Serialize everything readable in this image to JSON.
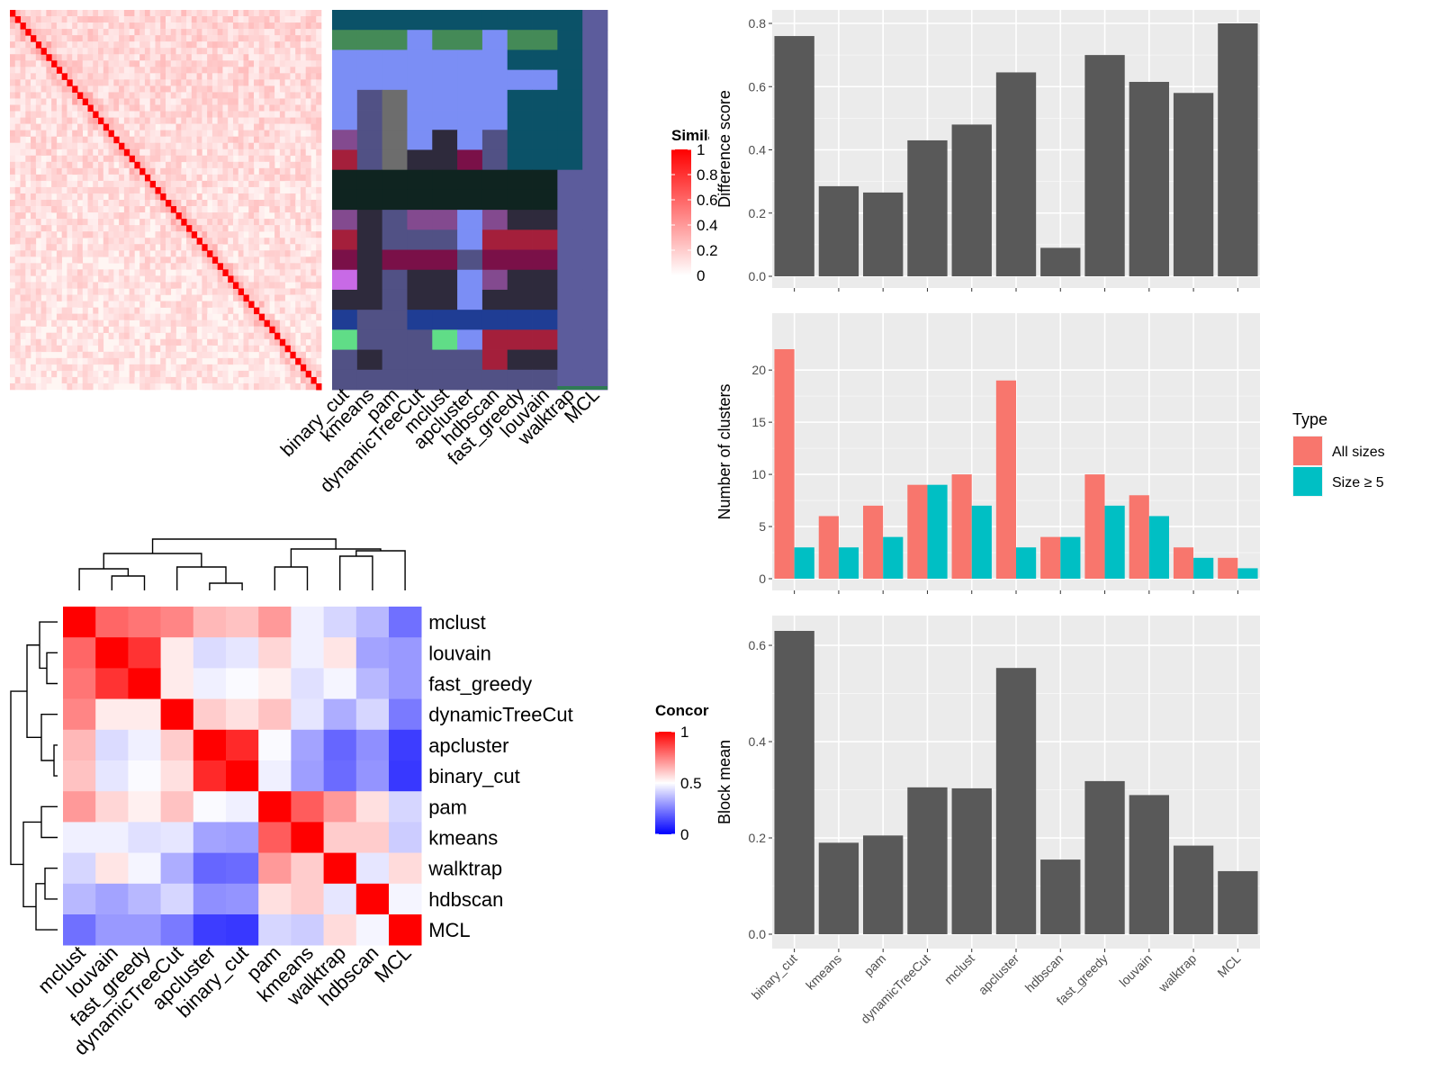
{
  "methods": [
    "binary_cut",
    "kmeans",
    "pam",
    "dynamicTreeCut",
    "mclust",
    "apcluster",
    "hdbscan",
    "fast_greedy",
    "louvain",
    "walktrap",
    "MCL"
  ],
  "similarity_legend": {
    "title": "Similarity",
    "ticks": [
      "1",
      "0.8",
      "0.6",
      "0.4",
      "0.2",
      "0"
    ]
  },
  "concordance_legend": {
    "title": "Concordance",
    "ticks": [
      "1",
      "0.5",
      "0"
    ]
  },
  "concordance_heatmap": {
    "order": [
      "mclust",
      "louvain",
      "fast_greedy",
      "dynamicTreeCut",
      "apcluster",
      "binary_cut",
      "pam",
      "kmeans",
      "walktrap",
      "hdbscan",
      "MCL"
    ],
    "matrix": [
      [
        1.0,
        0.8,
        0.77,
        0.74,
        0.64,
        0.62,
        0.7,
        0.47,
        0.42,
        0.36,
        0.22
      ],
      [
        0.8,
        1.0,
        0.9,
        0.54,
        0.43,
        0.45,
        0.58,
        0.47,
        0.55,
        0.32,
        0.3
      ],
      [
        0.77,
        0.9,
        1.0,
        0.54,
        0.47,
        0.49,
        0.53,
        0.44,
        0.48,
        0.36,
        0.3
      ],
      [
        0.74,
        0.54,
        0.54,
        1.0,
        0.6,
        0.56,
        0.62,
        0.45,
        0.34,
        0.42,
        0.24
      ],
      [
        0.64,
        0.43,
        0.47,
        0.6,
        1.0,
        0.92,
        0.49,
        0.32,
        0.2,
        0.28,
        0.12
      ],
      [
        0.62,
        0.45,
        0.49,
        0.56,
        0.92,
        1.0,
        0.47,
        0.31,
        0.21,
        0.29,
        0.11
      ],
      [
        0.7,
        0.58,
        0.53,
        0.62,
        0.49,
        0.47,
        1.0,
        0.82,
        0.7,
        0.56,
        0.42
      ],
      [
        0.47,
        0.47,
        0.44,
        0.45,
        0.32,
        0.31,
        0.82,
        1.0,
        0.6,
        0.6,
        0.4
      ],
      [
        0.42,
        0.55,
        0.48,
        0.34,
        0.2,
        0.21,
        0.7,
        0.6,
        1.0,
        0.45,
        0.57
      ],
      [
        0.36,
        0.32,
        0.36,
        0.42,
        0.28,
        0.29,
        0.56,
        0.6,
        0.45,
        1.0,
        0.48
      ],
      [
        0.22,
        0.3,
        0.3,
        0.24,
        0.12,
        0.11,
        0.42,
        0.4,
        0.57,
        0.48,
        1.0
      ]
    ]
  },
  "chart_data": [
    {
      "type": "bar",
      "categories": [
        "binary_cut",
        "kmeans",
        "pam",
        "dynamicTreeCut",
        "mclust",
        "apcluster",
        "hdbscan",
        "fast_greedy",
        "louvain",
        "walktrap",
        "MCL"
      ],
      "values": [
        0.76,
        0.285,
        0.265,
        0.43,
        0.48,
        0.645,
        0.09,
        0.7,
        0.615,
        0.58,
        0.8
      ],
      "ylabel": "Difference score",
      "ylim": [
        0,
        0.8
      ],
      "yticks": [
        "0.0",
        "0.2",
        "0.4",
        "0.6",
        "0.8"
      ],
      "color": "#595959"
    },
    {
      "type": "bar",
      "categories": [
        "binary_cut",
        "kmeans",
        "pam",
        "dynamicTreeCut",
        "mclust",
        "apcluster",
        "hdbscan",
        "fast_greedy",
        "louvain",
        "walktrap",
        "MCL"
      ],
      "series": [
        {
          "name": "All sizes",
          "values": [
            22,
            6,
            7,
            9,
            10,
            19,
            4,
            10,
            8,
            3,
            2
          ],
          "color": "#F8766D"
        },
        {
          "name": "Size ≥ 5",
          "values": [
            3,
            3,
            4,
            9,
            7,
            3,
            4,
            7,
            6,
            2,
            1
          ],
          "color": "#00BFC4"
        }
      ],
      "ylabel": "Number of clusters",
      "ylim": [
        0,
        22
      ],
      "yticks": [
        "0",
        "5",
        "10",
        "15",
        "20"
      ],
      "legend": {
        "title": "Type",
        "placement": "right"
      }
    },
    {
      "type": "bar",
      "categories": [
        "binary_cut",
        "kmeans",
        "pam",
        "dynamicTreeCut",
        "mclust",
        "apcluster",
        "hdbscan",
        "fast_greedy",
        "louvain",
        "walktrap",
        "MCL"
      ],
      "values": [
        0.63,
        0.19,
        0.205,
        0.305,
        0.303,
        0.553,
        0.155,
        0.318,
        0.289,
        0.184,
        0.131
      ],
      "ylabel": "Block mean",
      "ylim": [
        0,
        0.63
      ],
      "yticks": [
        "0.0",
        "0.2",
        "0.4",
        "0.6"
      ],
      "color": "#595959"
    }
  ]
}
